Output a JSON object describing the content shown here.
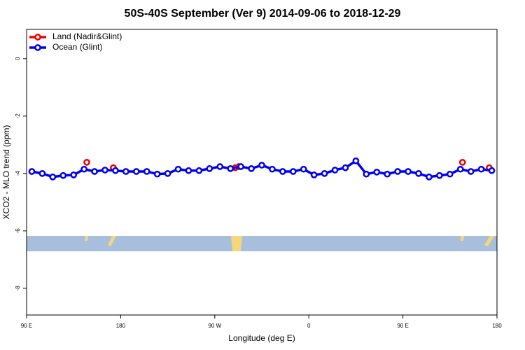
{
  "chart_data": {
    "type": "line",
    "title": "50S-40S September (Ver 9)   2014-09-06 to 2018-12-29",
    "xlabel": "Longitude (deg E)",
    "ylabel": "XCO2 - MLO trend (ppm)",
    "xlim": [
      90,
      540
    ],
    "xticks": [
      {
        "value": 90,
        "label": "90 E"
      },
      {
        "value": 180,
        "label": "180"
      },
      {
        "value": 270,
        "label": "90 W"
      },
      {
        "value": 360,
        "label": "0"
      },
      {
        "value": 450,
        "label": "90 E"
      },
      {
        "value": 540,
        "label": "180"
      }
    ],
    "ylim": [
      -8.93,
      1.02
    ],
    "yticks": [
      0,
      -2,
      -4,
      -6,
      -8
    ],
    "legend": "top-left",
    "series": [
      {
        "name": "Land (Nadir&Glint)",
        "color": "#ee0000",
        "connect": false,
        "x": [
          147.6,
          173,
          289.6,
          293,
          507,
          532.6
        ],
        "values": [
          -3.61,
          -3.8,
          -3.8,
          -3.76,
          -3.61,
          -3.8
        ]
      },
      {
        "name": "Ocean (Glint)",
        "color": "#0000ee",
        "connect": true,
        "x": [
          95,
          105,
          115,
          125,
          135,
          145,
          155,
          165,
          175,
          185,
          195,
          205,
          215,
          225,
          235,
          245,
          255,
          265,
          275,
          285,
          295,
          305,
          315,
          325,
          335,
          345,
          355,
          365,
          375,
          385,
          395,
          405,
          415,
          425,
          435,
          445,
          455,
          465,
          475,
          485,
          495,
          505,
          515,
          525,
          535
        ],
        "values": [
          -3.93,
          -4.0,
          -4.12,
          -4.07,
          -4.05,
          -3.85,
          -3.93,
          -3.88,
          -3.9,
          -3.93,
          -3.93,
          -3.93,
          -4.02,
          -4.0,
          -3.85,
          -3.9,
          -3.9,
          -3.83,
          -3.76,
          -3.83,
          -3.76,
          -3.83,
          -3.71,
          -3.85,
          -3.93,
          -3.93,
          -3.85,
          -4.05,
          -4.0,
          -3.88,
          -3.8,
          -3.56,
          -4.02,
          -3.95,
          -4.02,
          -3.93,
          -3.93,
          -4.0,
          -4.12,
          -4.07,
          -4.02,
          -3.85,
          -3.93,
          -3.85,
          -3.9
        ]
      }
    ]
  }
}
